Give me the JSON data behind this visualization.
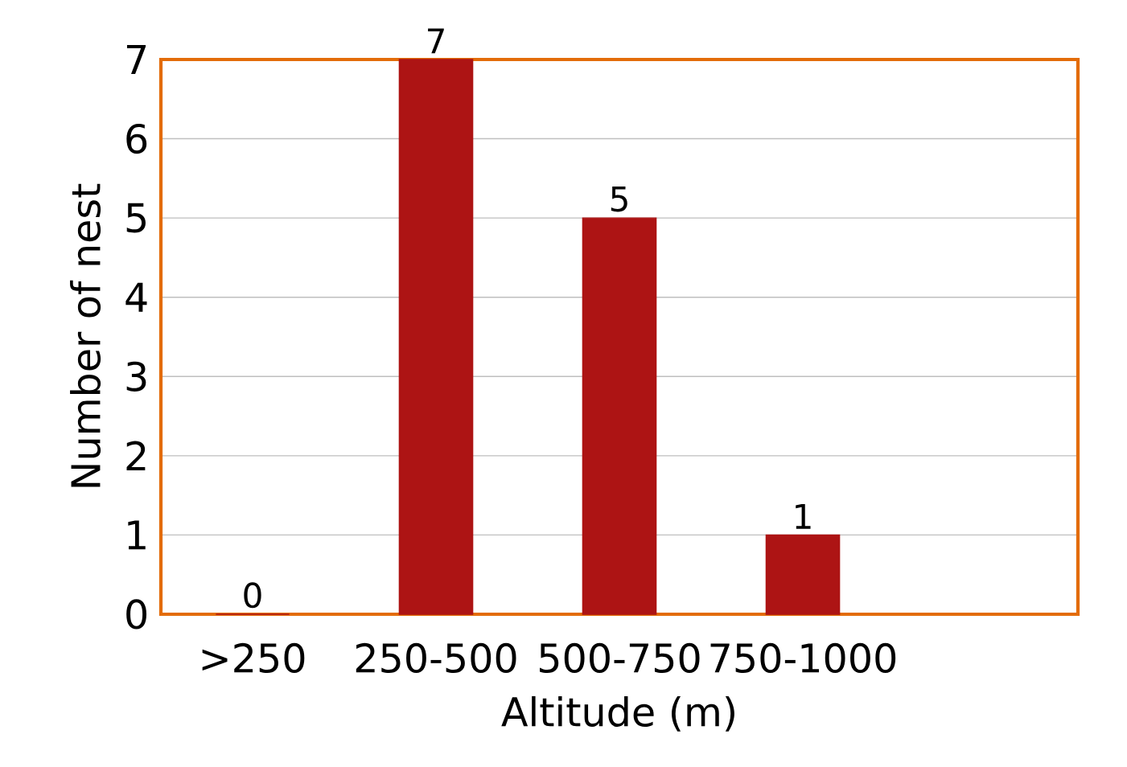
{
  "chart_data": {
    "type": "bar",
    "xlabel": "Altitude (m)",
    "ylabel": "Number of nest",
    "categories": [
      ">250",
      "250-500",
      "500-750",
      "750-1000"
    ],
    "values": [
      0,
      7,
      5,
      1
    ],
    "color": "#ad1414",
    "ylim": [
      0,
      7
    ],
    "yticks": [
      0,
      1,
      2,
      3,
      4,
      5,
      6,
      7
    ],
    "grid": "y",
    "data_labels": true
  }
}
